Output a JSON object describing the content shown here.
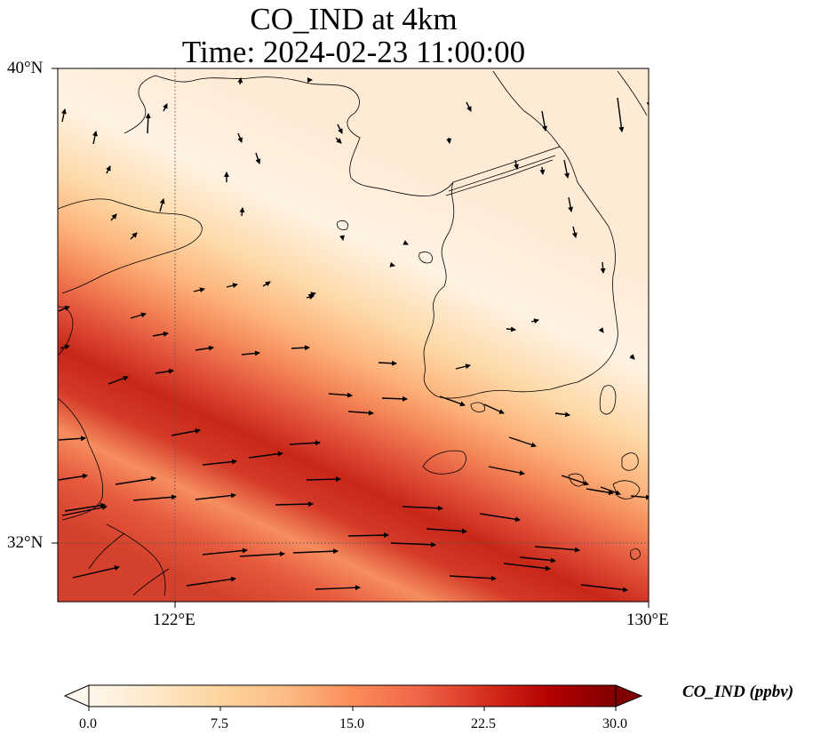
{
  "title": {
    "line1": "CO_IND at 4km",
    "line2": "Time: 2024-02-23 11:00:00"
  },
  "map": {
    "extent": {
      "lon_min": 119.0,
      "lon_max": 130.0,
      "lat_min": 30.9,
      "lat_max": 40.0
    },
    "lat_ticks": [
      {
        "value": 40,
        "label": "40°N"
      },
      {
        "value": 32,
        "label": "32°N"
      }
    ],
    "lon_ticks": [
      {
        "value": 122,
        "label": "122°E"
      },
      {
        "value": 130,
        "label": "130°E"
      }
    ],
    "gridline_style": "dotted",
    "field": "CO_IND concentration",
    "field_pattern": "band of high values oriented WNW-ESE across southern part of map; low values over northern Yellow Sea, Korea and north-east China",
    "wind_vectors": "black arrows showing wind direction; westerly over the south, northerly/north-westerly over the north-east"
  },
  "colorbar": {
    "label": "CO_IND (ppbv)",
    "colormap": "OrRd",
    "colors": [
      "#fff7ec",
      "#fee8c8",
      "#fdd49e",
      "#fdbb84",
      "#fc8d59",
      "#ef6548",
      "#d7301f",
      "#b30000",
      "#7f0000"
    ],
    "min": 0.0,
    "max": 30.0,
    "extend": "both",
    "ticks": [
      "0.0",
      "7.5",
      "15.0",
      "22.5",
      "30.0"
    ]
  }
}
